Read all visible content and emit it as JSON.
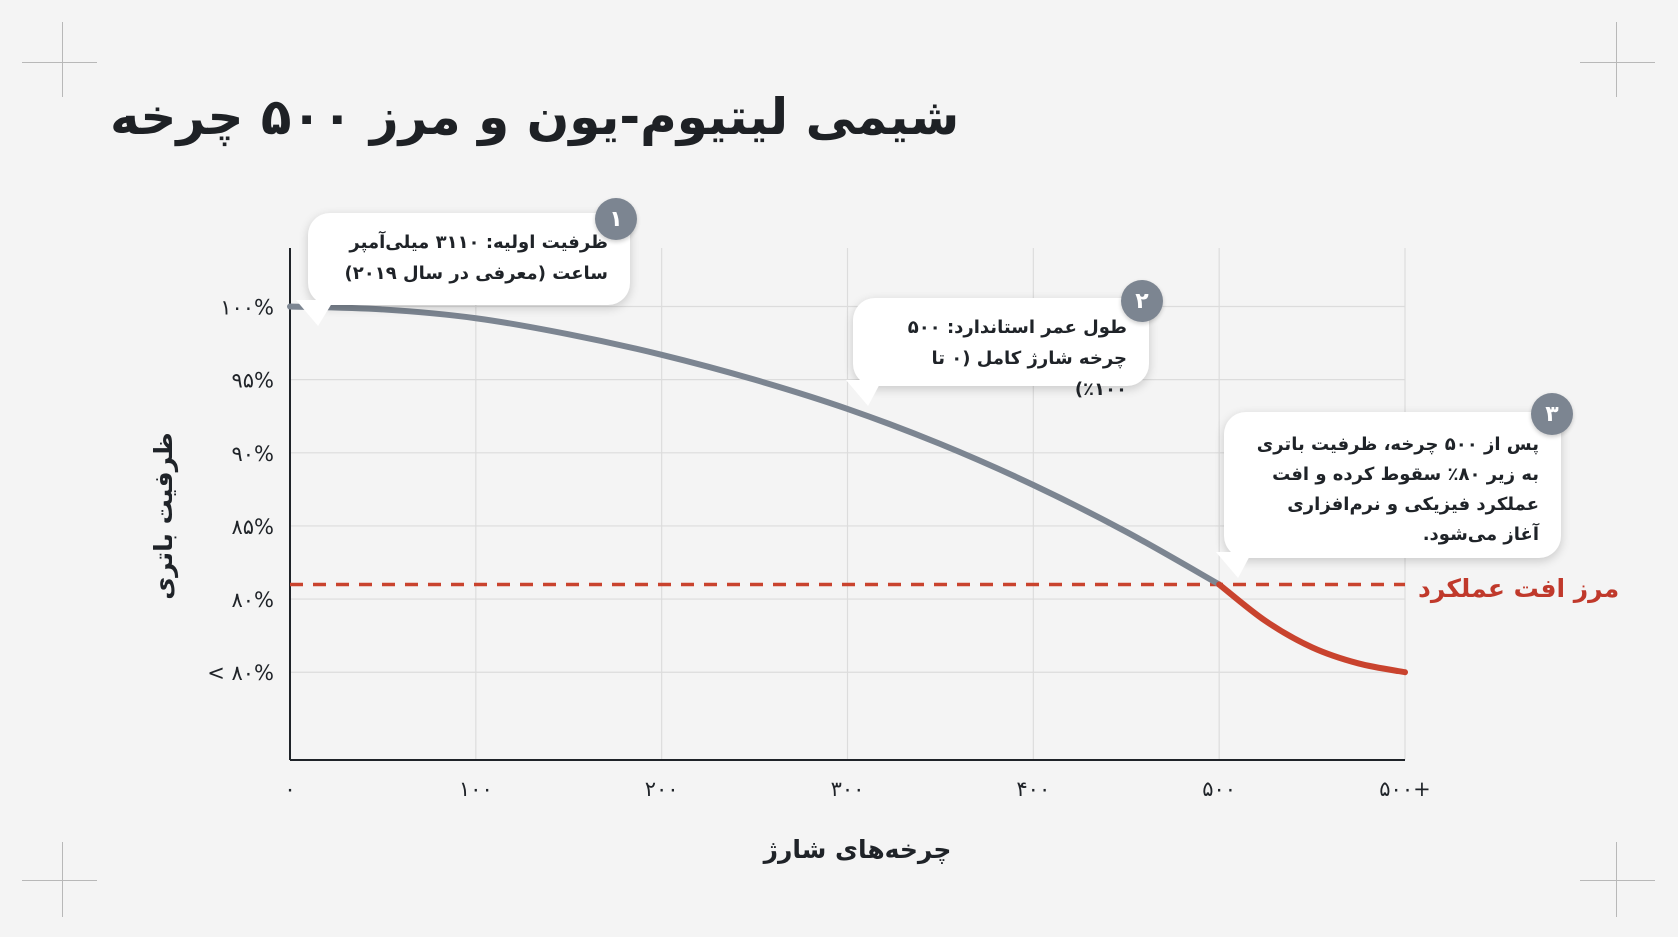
{
  "title": "شیمی لیتیوم-یون و مرز ۵۰۰ چرخه",
  "colors": {
    "curve_normal": "#7c8591",
    "curve_degraded": "#c9432e",
    "threshold": "#c9432e",
    "grid": "#dcdcdc",
    "axis": "#1f2328"
  },
  "callouts": [
    {
      "number": "۱",
      "text": "ظرفیت اولیه: ۳۱۱۰ میلی‌آمپر ساعت (معرفی در سال ۲۰۱۹)"
    },
    {
      "number": "۲",
      "text": "طول عمر استاندارد: ۵۰۰ چرخه شارژ کامل (۰ تا ۱۰۰٪)"
    },
    {
      "number": "۳",
      "text": "پس از ۵۰۰ چرخه، ظرفیت باتری به زیر ۸۰٪ سقوط کرده و افت عملکرد فیزیکی و نرم‌افزاری آغاز می‌شود."
    }
  ],
  "chart_data": {
    "type": "line",
    "title": "شیمی لیتیوم-یون و مرز ۵۰۰ چرخه",
    "xlabel": "چرخه‌های شارژ",
    "ylabel": "ظرفیت باتری",
    "x_tick_labels": [
      "۰",
      "۱۰۰",
      "۲۰۰",
      "۳۰۰",
      "۴۰۰",
      "۵۰۰",
      "۵۰۰+"
    ],
    "y_tick_labels": [
      "۱۰۰%",
      "۹۵%",
      "۹۰%",
      "۸۵%",
      "۸۰%",
      "< ۸۰%"
    ],
    "y_tick_values": [
      100,
      95,
      90,
      85,
      80,
      75
    ],
    "xlim": [
      0,
      600
    ],
    "ylim": [
      69,
      104
    ],
    "grid": true,
    "threshold": {
      "label": "مرز افت عملکرد",
      "y": 81
    },
    "series": [
      {
        "segment": "normal",
        "x": [
          0,
          50,
          100,
          150,
          200,
          250,
          300,
          350,
          400,
          450,
          500
        ],
        "y": [
          100,
          99.8,
          99.2,
          98.1,
          96.7,
          95.0,
          93.0,
          90.6,
          87.8,
          84.6,
          81
        ]
      },
      {
        "segment": "degraded",
        "x": [
          500,
          525,
          550,
          575,
          600
        ],
        "y": [
          81,
          78.5,
          76.7,
          75.6,
          75
        ]
      }
    ]
  }
}
